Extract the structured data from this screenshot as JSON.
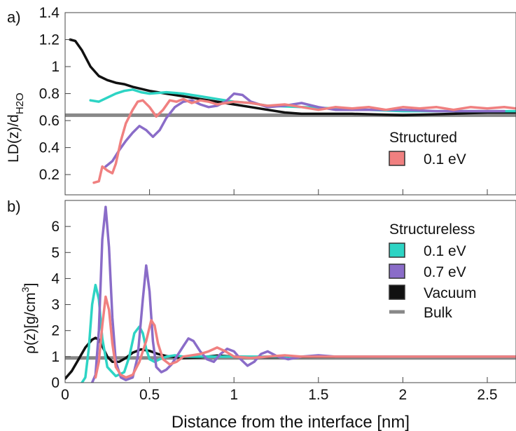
{
  "chart_data": [
    {
      "panel": "a)",
      "type": "line",
      "ylabel": "LD(z)/d",
      "ylabel_sub": "H2O",
      "xlim": [
        0,
        2.67
      ],
      "ylim": [
        0.05,
        1.4
      ],
      "yticks": [
        0.2,
        0.4,
        0.6,
        0.8,
        1,
        1.2,
        1.4
      ],
      "legend_title": "Structured",
      "legend_entries": [
        {
          "label": "0.1 eV",
          "color": "#f08080"
        }
      ],
      "series": [
        {
          "key": "black",
          "color": "#111111",
          "x": [
            0.03,
            0.06,
            0.1,
            0.15,
            0.2,
            0.25,
            0.3,
            0.35,
            0.4,
            0.5,
            0.6,
            0.7,
            0.8,
            0.9,
            1.0,
            1.1,
            1.2,
            1.3,
            1.4,
            1.5,
            1.7,
            2.0,
            2.3,
            2.5,
            2.67
          ],
          "y": [
            1.2,
            1.19,
            1.12,
            1.0,
            0.93,
            0.9,
            0.88,
            0.87,
            0.85,
            0.82,
            0.8,
            0.78,
            0.76,
            0.74,
            0.72,
            0.7,
            0.68,
            0.66,
            0.65,
            0.65,
            0.65,
            0.64,
            0.65,
            0.66,
            0.66
          ]
        },
        {
          "key": "cyan",
          "color": "#2dd4c4",
          "x": [
            0.15,
            0.2,
            0.25,
            0.3,
            0.35,
            0.4,
            0.45,
            0.5,
            0.6,
            0.7,
            0.8,
            0.9,
            1.0,
            1.1,
            1.2,
            1.4,
            1.6,
            1.8,
            2.0,
            2.2,
            2.4,
            2.67
          ],
          "y": [
            0.75,
            0.74,
            0.77,
            0.8,
            0.82,
            0.83,
            0.81,
            0.8,
            0.81,
            0.8,
            0.78,
            0.76,
            0.74,
            0.73,
            0.71,
            0.7,
            0.69,
            0.68,
            0.67,
            0.67,
            0.67,
            0.67
          ]
        },
        {
          "key": "purple",
          "color": "#8a6cc8",
          "x": [
            0.24,
            0.28,
            0.32,
            0.36,
            0.4,
            0.44,
            0.48,
            0.52,
            0.56,
            0.6,
            0.65,
            0.7,
            0.75,
            0.8,
            0.85,
            0.9,
            0.95,
            1.0,
            1.05,
            1.1,
            1.2,
            1.3,
            1.4,
            1.5,
            1.6,
            1.8,
            2.0,
            2.2,
            2.4,
            2.6
          ],
          "y": [
            0.26,
            0.3,
            0.38,
            0.45,
            0.51,
            0.56,
            0.53,
            0.48,
            0.53,
            0.62,
            0.7,
            0.74,
            0.75,
            0.72,
            0.7,
            0.71,
            0.74,
            0.8,
            0.79,
            0.74,
            0.7,
            0.71,
            0.73,
            0.7,
            0.68,
            0.68,
            0.68,
            0.67,
            0.67,
            0.67
          ]
        },
        {
          "key": "pink",
          "color": "#f08080",
          "x": [
            0.17,
            0.2,
            0.22,
            0.25,
            0.28,
            0.3,
            0.33,
            0.36,
            0.4,
            0.43,
            0.46,
            0.5,
            0.54,
            0.58,
            0.62,
            0.66,
            0.7,
            0.75,
            0.8,
            0.85,
            0.9,
            1.0,
            1.1,
            1.2,
            1.3,
            1.4,
            1.5,
            1.6,
            1.7,
            1.8,
            1.9,
            2.0,
            2.1,
            2.2,
            2.3,
            2.4,
            2.5,
            2.6,
            2.67
          ],
          "y": [
            0.14,
            0.15,
            0.26,
            0.23,
            0.21,
            0.28,
            0.45,
            0.58,
            0.68,
            0.74,
            0.75,
            0.7,
            0.63,
            0.68,
            0.75,
            0.74,
            0.76,
            0.73,
            0.75,
            0.74,
            0.72,
            0.74,
            0.73,
            0.71,
            0.72,
            0.7,
            0.68,
            0.7,
            0.69,
            0.7,
            0.68,
            0.7,
            0.69,
            0.7,
            0.68,
            0.7,
            0.69,
            0.7,
            0.69
          ]
        }
      ],
      "bulk_line": {
        "y": 0.64,
        "color": "#888888"
      }
    },
    {
      "panel": "b)",
      "type": "line",
      "xlabel": "Distance from the interface [nm]",
      "ylabel": "ρ(z)[g/cm",
      "ylabel_sup": "3",
      "ylabel_end": "]",
      "xlim": [
        0,
        2.67
      ],
      "ylim": [
        0,
        7
      ],
      "xticks": [
        0,
        0.5,
        1,
        1.5,
        2,
        2.5
      ],
      "xtick_labels": [
        "0",
        "0.5",
        "1",
        "1.5",
        "2",
        "2.5"
      ],
      "yticks": [
        0,
        1,
        2,
        3,
        4,
        5,
        6
      ],
      "legend_title": "Structureless",
      "legend_entries": [
        {
          "label": "0.1 eV",
          "color": "#2dd4c4",
          "kind": "box"
        },
        {
          "label": "0.7 eV",
          "color": "#8a6cc8",
          "kind": "box"
        },
        {
          "label": "Vacuum",
          "color": "#111111",
          "kind": "box"
        },
        {
          "label": "Bulk",
          "color": "#888888",
          "kind": "line"
        }
      ],
      "series": [
        {
          "key": "black",
          "color": "#111111",
          "x": [
            0.0,
            0.04,
            0.08,
            0.12,
            0.16,
            0.18,
            0.2,
            0.22,
            0.25,
            0.28,
            0.32,
            0.36,
            0.4,
            0.45,
            0.5,
            0.55,
            0.6,
            0.7,
            0.8,
            0.9,
            1.0,
            1.2,
            1.5,
            2.0,
            2.67
          ],
          "y": [
            0.15,
            0.45,
            0.9,
            1.35,
            1.65,
            1.72,
            1.65,
            1.4,
            1.0,
            0.8,
            0.8,
            0.95,
            1.15,
            1.28,
            1.22,
            1.1,
            1.02,
            0.95,
            0.97,
            1.04,
            1.0,
            0.98,
            0.99,
            1.0,
            1.0
          ]
        },
        {
          "key": "cyan",
          "color": "#2dd4c4",
          "x": [
            0.1,
            0.12,
            0.14,
            0.16,
            0.18,
            0.2,
            0.22,
            0.25,
            0.3,
            0.35,
            0.38,
            0.41,
            0.44,
            0.46,
            0.48,
            0.5,
            0.53,
            0.56,
            0.6,
            0.65,
            0.7,
            0.8,
            0.9,
            1.0,
            1.2,
            1.5,
            2.0,
            2.67
          ],
          "y": [
            0.0,
            0.2,
            1.3,
            3.0,
            3.75,
            3.2,
            1.7,
            0.6,
            0.25,
            0.4,
            1.0,
            1.9,
            2.15,
            1.9,
            1.3,
            0.9,
            0.8,
            0.9,
            1.0,
            1.05,
            1.0,
            1.0,
            1.0,
            1.0,
            1.0,
            1.0,
            1.0,
            1.0
          ]
        },
        {
          "key": "purple",
          "color": "#8a6cc8",
          "x": [
            0.16,
            0.18,
            0.2,
            0.22,
            0.24,
            0.26,
            0.28,
            0.3,
            0.33,
            0.36,
            0.4,
            0.43,
            0.46,
            0.48,
            0.5,
            0.52,
            0.54,
            0.57,
            0.6,
            0.63,
            0.66,
            0.7,
            0.73,
            0.76,
            0.8,
            0.84,
            0.88,
            0.92,
            0.96,
            1.0,
            1.04,
            1.08,
            1.12,
            1.16,
            1.2,
            1.26,
            1.32,
            1.4,
            1.5,
            1.6,
            1.8,
            2.0,
            2.67
          ],
          "y": [
            0.0,
            0.3,
            2.0,
            5.5,
            6.75,
            5.2,
            2.5,
            0.8,
            0.2,
            0.1,
            0.2,
            1.0,
            3.2,
            4.5,
            3.5,
            1.6,
            0.6,
            0.4,
            0.5,
            0.7,
            1.0,
            1.4,
            1.7,
            1.6,
            1.2,
            0.9,
            0.8,
            1.1,
            1.3,
            1.2,
            0.9,
            0.65,
            0.8,
            1.1,
            1.2,
            1.0,
            0.9,
            1.0,
            1.05,
            1.0,
            1.0,
            1.0,
            1.0
          ]
        },
        {
          "key": "pink",
          "color": "#f08080",
          "x": [
            0.18,
            0.2,
            0.22,
            0.24,
            0.26,
            0.28,
            0.3,
            0.33,
            0.36,
            0.4,
            0.44,
            0.48,
            0.51,
            0.53,
            0.55,
            0.58,
            0.62,
            0.66,
            0.7,
            0.75,
            0.8,
            0.85,
            0.9,
            0.95,
            1.0,
            1.1,
            1.2,
            1.3,
            1.4,
            1.5,
            1.7,
            2.0,
            2.67
          ],
          "y": [
            0.2,
            0.8,
            2.2,
            3.3,
            2.8,
            1.5,
            0.6,
            0.3,
            0.2,
            0.3,
            0.8,
            1.6,
            2.4,
            2.2,
            1.5,
            0.9,
            0.7,
            0.8,
            1.0,
            1.05,
            1.1,
            1.2,
            1.35,
            1.2,
            1.0,
            0.95,
            1.0,
            1.05,
            1.0,
            1.0,
            1.0,
            1.0,
            1.0
          ]
        }
      ],
      "bulk_line": {
        "y": 0.95,
        "color": "#888888"
      }
    }
  ]
}
